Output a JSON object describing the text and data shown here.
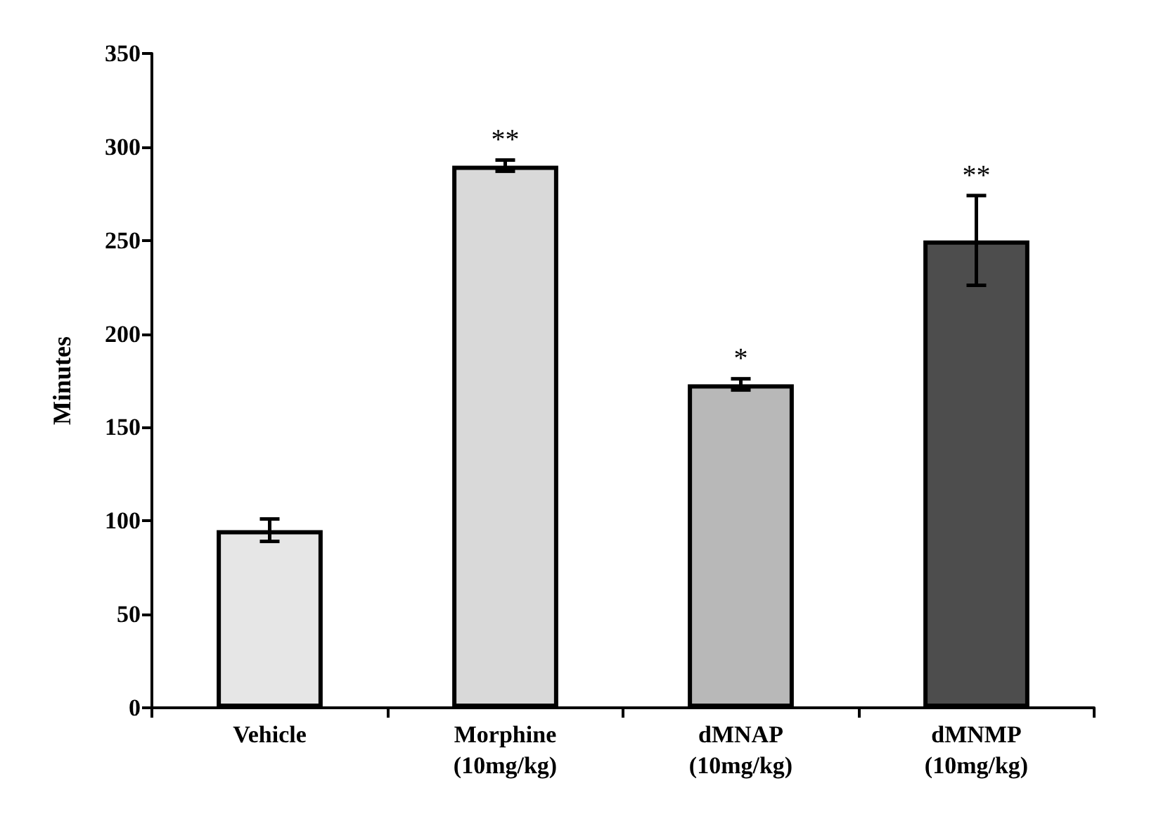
{
  "chart_data": {
    "type": "bar",
    "ylabel": "Minutes",
    "categories": [
      "Vehicle",
      "Morphine\n(10mg/kg)",
      "dMNAP\n(10mg/kg)",
      "dMNMP\n(10mg/kg)"
    ],
    "values": [
      95,
      290,
      173,
      250
    ],
    "errors": [
      6,
      3,
      3,
      24
    ],
    "colors": [
      "#e6e6e6",
      "#d9d9d9",
      "#b8b8b8",
      "#4d4d4d"
    ],
    "ylim": [
      0,
      350
    ],
    "yticks": [
      0,
      50,
      100,
      150,
      200,
      250,
      300,
      350
    ],
    "grid": false,
    "annotations": [
      {
        "text": "**",
        "x": "Morphine\n(10mg/kg)",
        "y": 293
      },
      {
        "text": "*",
        "x": "dMNAP\n(10mg/kg)",
        "y": 176
      },
      {
        "text": "**",
        "x": "dMNMP\n(10mg/kg)",
        "y": 274
      }
    ]
  }
}
